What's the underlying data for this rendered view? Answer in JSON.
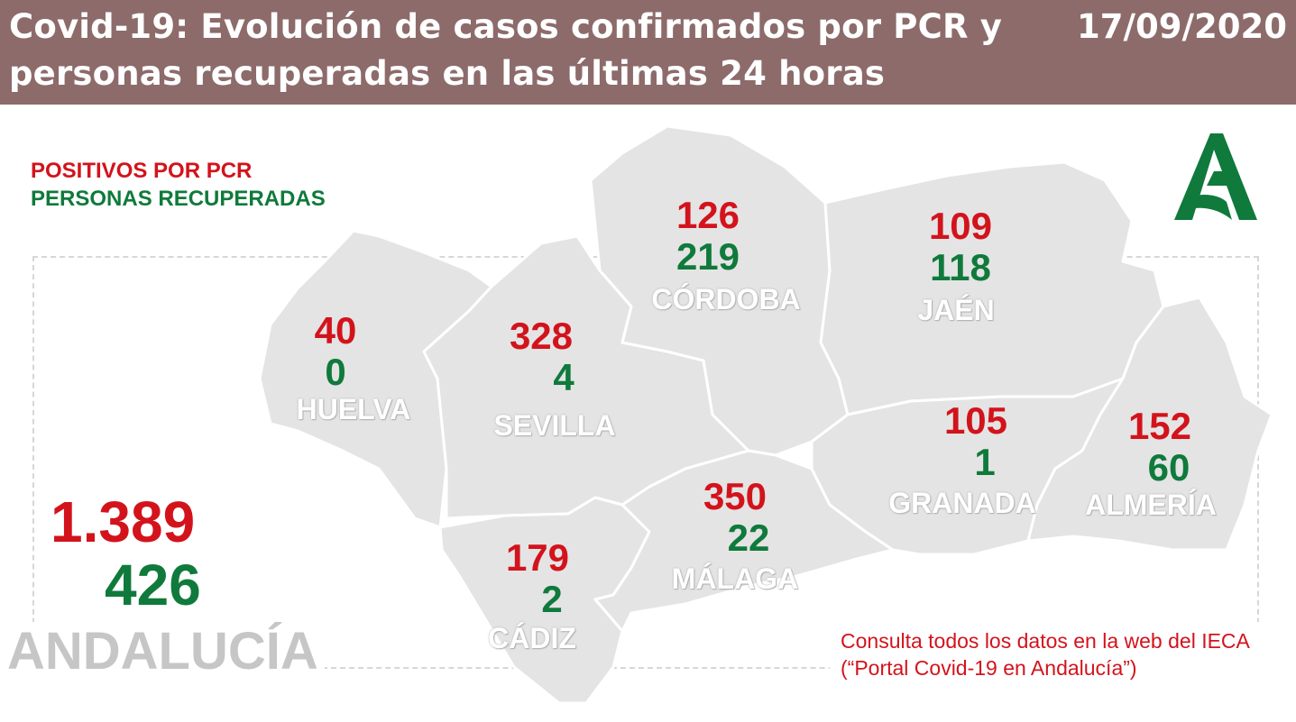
{
  "header": {
    "title": "Covid-19: Evolución de casos confirmados por PCR y personas recuperadas en las últimas 24 horas",
    "date": "17/09/2020",
    "background_color": "#8d6b6b"
  },
  "legend": {
    "positives_label": "POSITIVOS POR PCR",
    "recovered_label": "PERSONAS RECUPERADAS",
    "positives_color": "#d3131c",
    "recovered_color": "#0f7a3b"
  },
  "total": {
    "region": "ANDALUCÍA",
    "positives": "1.389",
    "recovered": "426"
  },
  "provinces": [
    {
      "name": "HUELVA",
      "positives": "40",
      "recovered": "0"
    },
    {
      "name": "SEVILLA",
      "positives": "328",
      "recovered": "4"
    },
    {
      "name": "CÓRDOBA",
      "positives": "126",
      "recovered": "219"
    },
    {
      "name": "JAÉN",
      "positives": "109",
      "recovered": "118"
    },
    {
      "name": "CÁDIZ",
      "positives": "179",
      "recovered": "2"
    },
    {
      "name": "MÁLAGA",
      "positives": "350",
      "recovered": "22"
    },
    {
      "name": "GRANADA",
      "positives": "105",
      "recovered": "1"
    },
    {
      "name": "ALMERÍA",
      "positives": "152",
      "recovered": "60"
    }
  ],
  "note": "Consulta todos los datos en la web del IECA (“Portal Covid-19 en Andalucía”)",
  "logo": {
    "icon": "junta-de-andalucia-logo-icon",
    "color": "#0f7a3b"
  },
  "map": {
    "fill_color": "#e4e4e4",
    "border_color": "#ffffff"
  }
}
